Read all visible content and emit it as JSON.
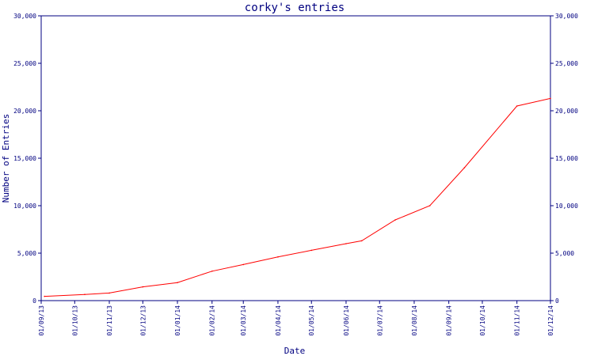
{
  "chart_data": {
    "type": "line",
    "title": "corky's entries",
    "xlabel": "Date",
    "ylabel": "Number of Entries",
    "ylim": [
      0,
      30000
    ],
    "y_ticks": [
      {
        "value": 0,
        "label": "0"
      },
      {
        "value": 5000,
        "label": "5,000"
      },
      {
        "value": 10000,
        "label": "10,000"
      },
      {
        "value": 15000,
        "label": "15,000"
      },
      {
        "value": 20000,
        "label": "20,000"
      },
      {
        "value": 25000,
        "label": "25,000"
      },
      {
        "value": 30000,
        "label": "30,000"
      }
    ],
    "x_ticks": [
      "01/09/13",
      "01/10/13",
      "01/11/13",
      "01/12/13",
      "01/01/14",
      "01/02/14",
      "01/03/14",
      "01/04/14",
      "01/05/14",
      "01/06/14",
      "01/07/14",
      "01/08/14",
      "01/09/14",
      "01/10/14",
      "01/11/14",
      "01/12/14"
    ],
    "x_range": [
      "2013-09-01",
      "2014-12-01"
    ],
    "grid": false,
    "legend": "none",
    "series": [
      {
        "color": "#ff0000",
        "points": [
          {
            "x": "2013-09-04",
            "y": 450
          },
          {
            "x": "2013-10-10",
            "y": 650
          },
          {
            "x": "2013-11-01",
            "y": 800
          },
          {
            "x": "2013-12-01",
            "y": 1450
          },
          {
            "x": "2014-01-01",
            "y": 1900
          },
          {
            "x": "2014-02-01",
            "y": 3100
          },
          {
            "x": "2014-03-01",
            "y": 3800
          },
          {
            "x": "2014-04-01",
            "y": 4600
          },
          {
            "x": "2014-05-01",
            "y": 5300
          },
          {
            "x": "2014-06-01",
            "y": 6000
          },
          {
            "x": "2014-06-15",
            "y": 6300
          },
          {
            "x": "2014-07-15",
            "y": 8500
          },
          {
            "x": "2014-08-15",
            "y": 10000
          },
          {
            "x": "2014-09-15",
            "y": 14000
          },
          {
            "x": "2014-11-01",
            "y": 20500
          },
          {
            "x": "2014-12-01",
            "y": 21300
          }
        ]
      }
    ]
  },
  "colors": {
    "axis": "#000080",
    "title": "#000080",
    "line": "#ff0000"
  }
}
